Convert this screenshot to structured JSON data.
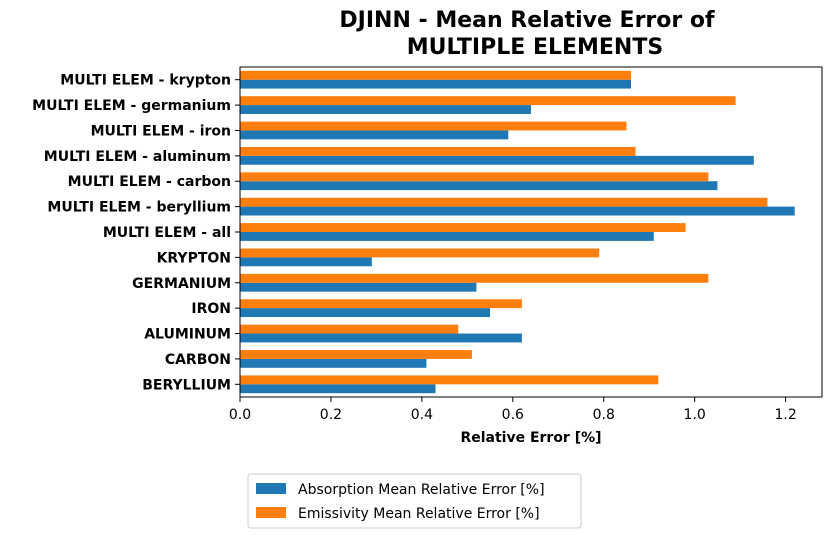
{
  "chart_data": {
    "type": "bar",
    "orientation": "horizontal",
    "title_line1": "DJINN - Mean Relative Error of",
    "title_line2": "MULTIPLE ELEMENTS",
    "xlabel": "Relative Error [%]",
    "ylabel": "",
    "xlim": [
      0,
      1.28
    ],
    "xticks": [
      "0.0",
      "0.2",
      "0.4",
      "0.6",
      "0.8",
      "1.0",
      "1.2"
    ],
    "grid": false,
    "legend_position": "bottom",
    "categories": [
      "BERYLLIUM",
      "CARBON",
      "ALUMINUM",
      "IRON",
      "GERMANIUM",
      "KRYPTON",
      "MULTI ELEM - all",
      "MULTI ELEM - beryllium",
      "MULTI ELEM - carbon",
      "MULTI ELEM - aluminum",
      "MULTI ELEM - iron",
      "MULTI ELEM - germanium",
      "MULTI ELEM - krypton"
    ],
    "series": [
      {
        "name": "Absorption Mean Relative Error [%]",
        "color": "#1f77b4",
        "values": [
          0.43,
          0.41,
          0.62,
          0.55,
          0.52,
          0.29,
          0.91,
          1.22,
          1.05,
          1.13,
          0.59,
          0.64,
          0.86
        ]
      },
      {
        "name": "Emissivity Mean Relative Error [%]",
        "color": "#ff7f0e",
        "values": [
          0.92,
          0.51,
          0.48,
          0.62,
          1.03,
          0.79,
          0.98,
          1.16,
          1.03,
          0.87,
          0.85,
          1.09,
          0.86
        ]
      }
    ]
  }
}
